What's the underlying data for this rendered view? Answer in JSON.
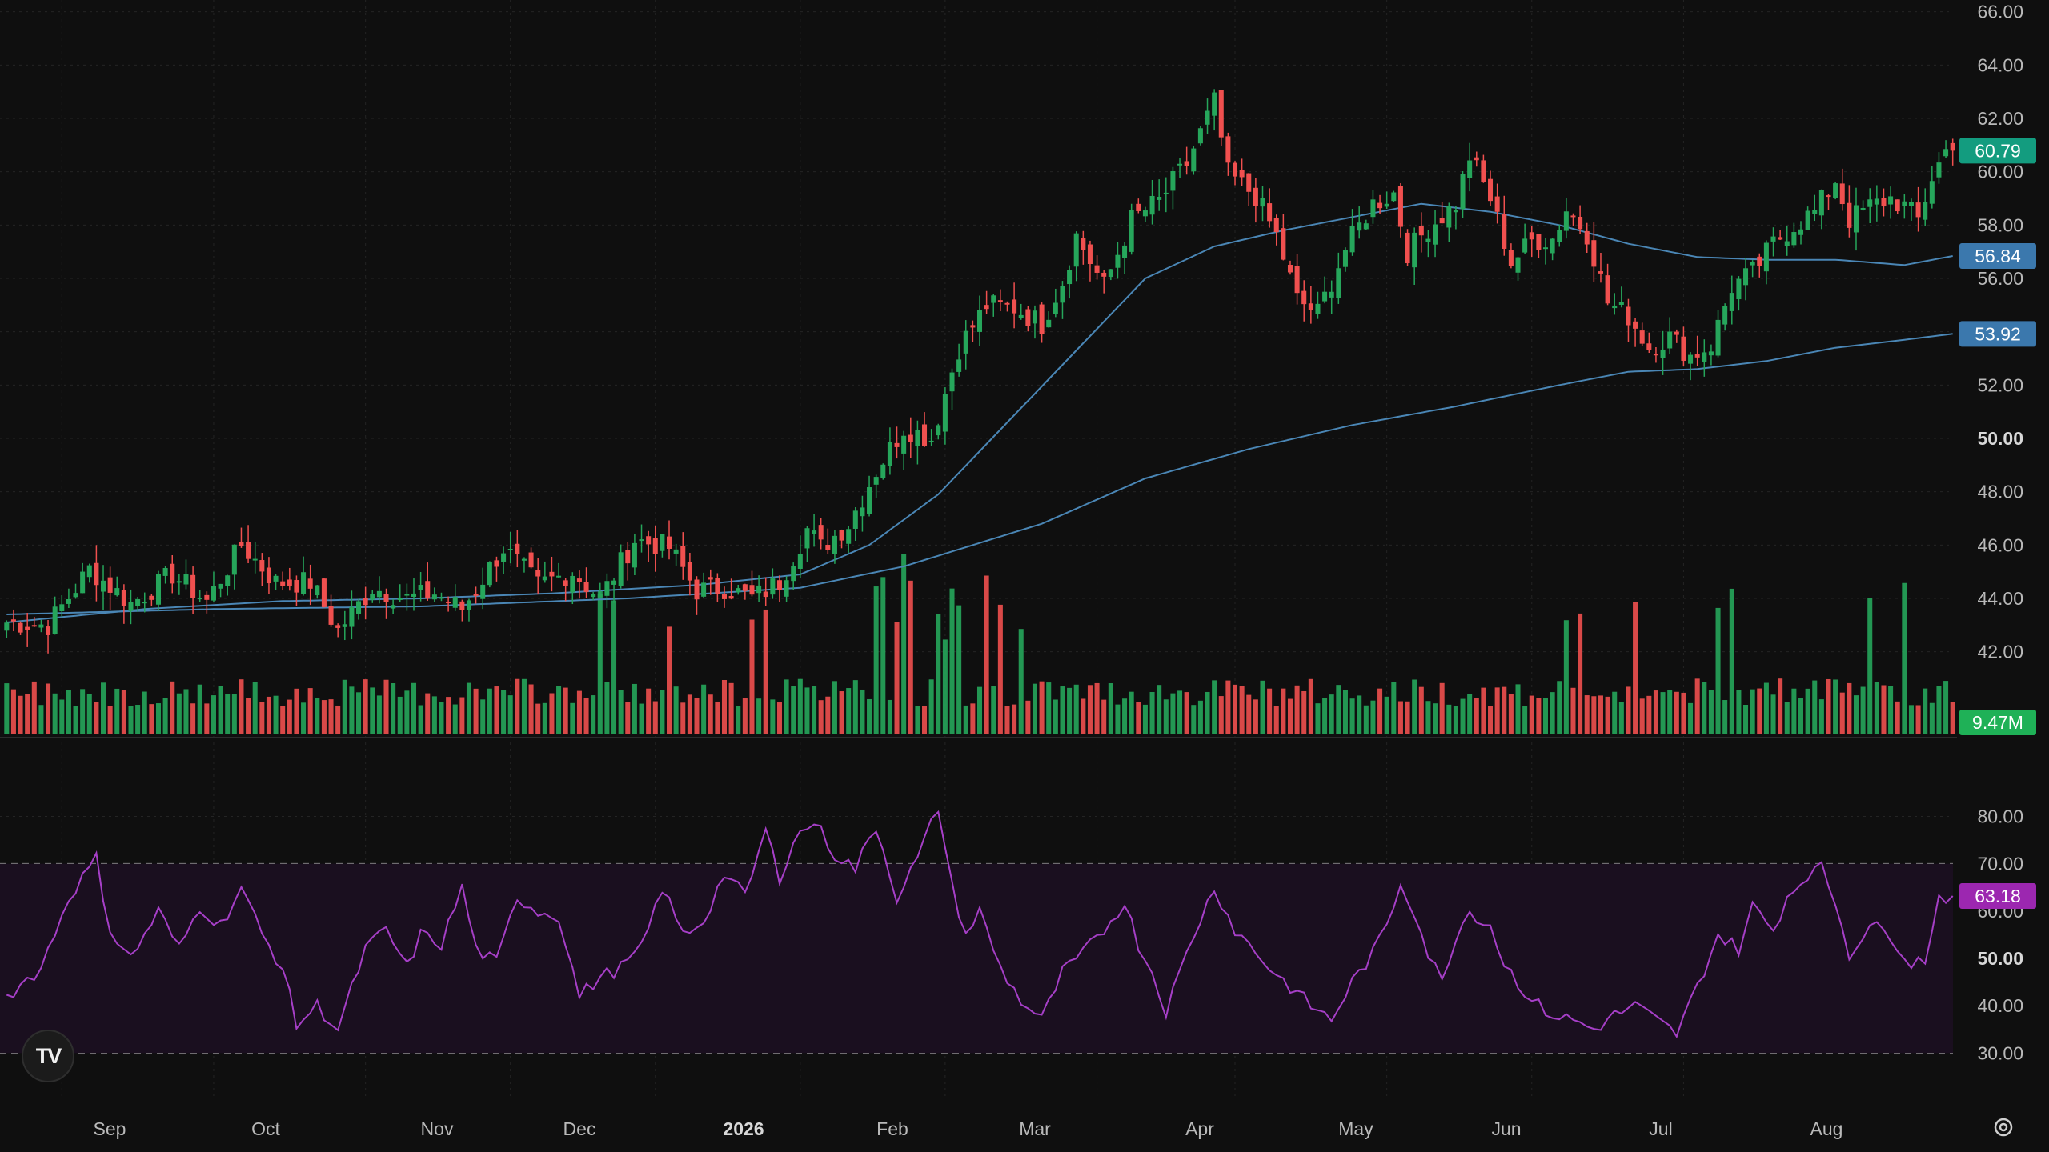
{
  "chart_data": {
    "type": "candlestick",
    "title": "",
    "price_axis": {
      "ticks": [
        "66.00",
        "64.00",
        "62.00",
        "60.00",
        "58.00",
        "56.00",
        "54.00",
        "52.00",
        "50.00",
        "48.00",
        "46.00",
        "44.00",
        "42.00"
      ],
      "range": [
        41,
        66.2
      ]
    },
    "time_axis": {
      "labels": [
        "Sep",
        "Oct",
        "Nov",
        "Dec",
        "2026",
        "Feb",
        "Mar",
        "Apr",
        "May",
        "Jun",
        "Jul",
        "Aug"
      ]
    },
    "badges": {
      "last_price": "60.79",
      "ma_short": "56.84",
      "ma_long": "53.92",
      "volume": "9.47M",
      "rsi": "63.18"
    },
    "rsi_axis": {
      "ticks": [
        "80.00",
        "70.00",
        "60.00",
        "50.00",
        "40.00",
        "30.00"
      ],
      "range": [
        26,
        86
      ],
      "overbought": 70,
      "oversold": 30
    },
    "colors": {
      "up": "#26a65b",
      "down": "#f0504f",
      "ma": "#4a86b5",
      "rsi": "#a63fc7",
      "rsi_band": "#1a0f1f",
      "last_price_badge": "#139c7f",
      "ma_badge": "#3b78ad",
      "volume_badge": "#1fb157",
      "rsi_badge": "#9c27b0"
    },
    "ohlc_anchors": [
      [
        0,
        43.1
      ],
      [
        6,
        43.0
      ],
      [
        12,
        45.1
      ],
      [
        18,
        43.8
      ],
      [
        24,
        44.9
      ],
      [
        29,
        43.9
      ],
      [
        34,
        46.0
      ],
      [
        39,
        44.6
      ],
      [
        44,
        44.6
      ],
      [
        48,
        42.8
      ],
      [
        53,
        44.4
      ],
      [
        58,
        44.0
      ],
      [
        62,
        44.2
      ],
      [
        66,
        43.6
      ],
      [
        72,
        45.9
      ],
      [
        77,
        44.5
      ],
      [
        82,
        45.0
      ],
      [
        86,
        44.0
      ],
      [
        91,
        46.2
      ],
      [
        96,
        45.9
      ],
      [
        100,
        44.3
      ],
      [
        104,
        44.4
      ],
      [
        108,
        44.0
      ],
      [
        112,
        44.6
      ],
      [
        116,
        46.6
      ],
      [
        118,
        45.9
      ],
      [
        122,
        46.8
      ],
      [
        126,
        48.8
      ],
      [
        130,
        50.4
      ],
      [
        134,
        50.0
      ],
      [
        138,
        53.4
      ],
      [
        142,
        55.0
      ],
      [
        146,
        54.9
      ],
      [
        150,
        54.3
      ],
      [
        153,
        55.9
      ],
      [
        155,
        57.6
      ],
      [
        159,
        55.7
      ],
      [
        163,
        58.2
      ],
      [
        167,
        58.9
      ],
      [
        171,
        60.3
      ],
      [
        175,
        62.6
      ],
      [
        177,
        59.9
      ],
      [
        181,
        59.1
      ],
      [
        184,
        57.6
      ],
      [
        187,
        55.2
      ],
      [
        190,
        54.7
      ],
      [
        194,
        57.1
      ],
      [
        198,
        58.8
      ],
      [
        201,
        59.2
      ],
      [
        203,
        57.0
      ],
      [
        206,
        57.9
      ],
      [
        210,
        58.8
      ],
      [
        212,
        60.6
      ],
      [
        215,
        59.0
      ],
      [
        218,
        56.6
      ],
      [
        221,
        57.4
      ],
      [
        224,
        57.5
      ],
      [
        226,
        58.6
      ],
      [
        229,
        57.7
      ],
      [
        232,
        55.1
      ],
      [
        235,
        54.6
      ],
      [
        238,
        53.4
      ],
      [
        241,
        53.8
      ],
      [
        244,
        53.1
      ],
      [
        247,
        53.5
      ],
      [
        250,
        55.7
      ],
      [
        253,
        56.2
      ],
      [
        256,
        57.3
      ],
      [
        259,
        58.0
      ],
      [
        262,
        58.5
      ],
      [
        265,
        59.7
      ],
      [
        267,
        58.2
      ],
      [
        270,
        58.7
      ],
      [
        273,
        59.0
      ],
      [
        275,
        58.7
      ],
      [
        277,
        58.2
      ],
      [
        279,
        59.8
      ],
      [
        281,
        60.79
      ]
    ],
    "ma_short_points": [
      [
        0,
        43.1
      ],
      [
        20,
        43.6
      ],
      [
        40,
        43.9
      ],
      [
        60,
        44.0
      ],
      [
        80,
        44.2
      ],
      [
        100,
        44.5
      ],
      [
        115,
        44.9
      ],
      [
        125,
        46.0
      ],
      [
        135,
        47.9
      ],
      [
        145,
        50.6
      ],
      [
        155,
        53.3
      ],
      [
        165,
        56.0
      ],
      [
        175,
        57.2
      ],
      [
        185,
        57.8
      ],
      [
        195,
        58.3
      ],
      [
        205,
        58.8
      ],
      [
        215,
        58.5
      ],
      [
        225,
        58.0
      ],
      [
        235,
        57.3
      ],
      [
        245,
        56.8
      ],
      [
        255,
        56.7
      ],
      [
        265,
        56.7
      ],
      [
        275,
        56.5
      ],
      [
        282,
        56.84
      ]
    ],
    "ma_long_points": [
      [
        0,
        43.4
      ],
      [
        30,
        43.6
      ],
      [
        60,
        43.7
      ],
      [
        90,
        44.0
      ],
      [
        115,
        44.4
      ],
      [
        130,
        45.2
      ],
      [
        150,
        46.8
      ],
      [
        165,
        48.5
      ],
      [
        180,
        49.6
      ],
      [
        195,
        50.5
      ],
      [
        210,
        51.2
      ],
      [
        225,
        52.0
      ],
      [
        235,
        52.5
      ],
      [
        245,
        52.6
      ],
      [
        255,
        52.9
      ],
      [
        265,
        53.4
      ],
      [
        275,
        53.7
      ],
      [
        282,
        53.92
      ]
    ],
    "rsi_anchors": [
      [
        0,
        42
      ],
      [
        5,
        48
      ],
      [
        9,
        63
      ],
      [
        13,
        71
      ],
      [
        15,
        56
      ],
      [
        18,
        50
      ],
      [
        22,
        60
      ],
      [
        25,
        52
      ],
      [
        28,
        61
      ],
      [
        31,
        57
      ],
      [
        34,
        65
      ],
      [
        37,
        55
      ],
      [
        40,
        48
      ],
      [
        42,
        36
      ],
      [
        45,
        40
      ],
      [
        48,
        35
      ],
      [
        52,
        52
      ],
      [
        55,
        56
      ],
      [
        58,
        48
      ],
      [
        60,
        55
      ],
      [
        63,
        53
      ],
      [
        66,
        65
      ],
      [
        68,
        52
      ],
      [
        71,
        49
      ],
      [
        74,
        63
      ],
      [
        77,
        60
      ],
      [
        80,
        59
      ],
      [
        83,
        42
      ],
      [
        86,
        46
      ],
      [
        89,
        48
      ],
      [
        92,
        52
      ],
      [
        95,
        65
      ],
      [
        98,
        55
      ],
      [
        101,
        58
      ],
      [
        104,
        68
      ],
      [
        107,
        63
      ],
      [
        110,
        77
      ],
      [
        112,
        67
      ],
      [
        114,
        75
      ],
      [
        117,
        79
      ],
      [
        120,
        72
      ],
      [
        123,
        69
      ],
      [
        126,
        78
      ],
      [
        129,
        63
      ],
      [
        132,
        71
      ],
      [
        135,
        82
      ],
      [
        137,
        65
      ],
      [
        139,
        55
      ],
      [
        141,
        60
      ],
      [
        144,
        48
      ],
      [
        147,
        41
      ],
      [
        150,
        37
      ],
      [
        153,
        47
      ],
      [
        156,
        51
      ],
      [
        159,
        56
      ],
      [
        162,
        62
      ],
      [
        164,
        53
      ],
      [
        166,
        47
      ],
      [
        168,
        39
      ],
      [
        172,
        55
      ],
      [
        175,
        65
      ],
      [
        178,
        56
      ],
      [
        180,
        53
      ],
      [
        183,
        48
      ],
      [
        186,
        44
      ],
      [
        189,
        40
      ],
      [
        192,
        37
      ],
      [
        195,
        45
      ],
      [
        198,
        51
      ],
      [
        200,
        57
      ],
      [
        202,
        66
      ],
      [
        204,
        60
      ],
      [
        206,
        51
      ],
      [
        208,
        45
      ],
      [
        210,
        55
      ],
      [
        212,
        60
      ],
      [
        215,
        57
      ],
      [
        217,
        49
      ],
      [
        219,
        45
      ],
      [
        221,
        41
      ],
      [
        224,
        38
      ],
      [
        227,
        37
      ],
      [
        230,
        35
      ],
      [
        233,
        38
      ],
      [
        236,
        40
      ],
      [
        239,
        37
      ],
      [
        242,
        34
      ],
      [
        245,
        44
      ],
      [
        248,
        55
      ],
      [
        251,
        52
      ],
      [
        253,
        61
      ],
      [
        256,
        56
      ],
      [
        258,
        63
      ],
      [
        261,
        68
      ],
      [
        263,
        69
      ],
      [
        265,
        62
      ],
      [
        267,
        51
      ],
      [
        270,
        57
      ],
      [
        273,
        55
      ],
      [
        276,
        49
      ],
      [
        278,
        50
      ],
      [
        280,
        63
      ],
      [
        282,
        63.18
      ]
    ]
  }
}
